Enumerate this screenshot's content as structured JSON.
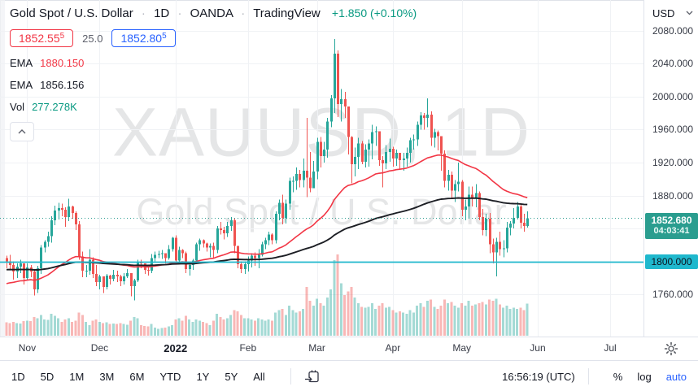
{
  "header": {
    "title": "Gold Spot / U.S. Dollar",
    "separator": "·",
    "interval": "1D",
    "exchange": "OANDA",
    "platform": "TradingView",
    "change": "+1.850 (+0.10%)",
    "change_color": "#089981"
  },
  "quote": {
    "bid": "1852.55",
    "bid_sup": "5",
    "spread": "25.0",
    "ask": "1852.80",
    "ask_sup": "5"
  },
  "indicators": [
    {
      "label": "EMA",
      "value": "1880.150",
      "color": "#f23645"
    },
    {
      "label": "EMA",
      "value": "1856.156",
      "color": "#131722"
    },
    {
      "label": "Vol",
      "value": "277.278K",
      "color": "#089981"
    }
  ],
  "watermark": {
    "line1": "XAUUSD, 1D",
    "line2": "Gold Spot / U.S. Dollar"
  },
  "price_axis": {
    "currency": "USD",
    "ticks": [
      "2080.000",
      "2040.000",
      "2000.000",
      "1960.000",
      "1920.000",
      "1880.000",
      "1760.000"
    ],
    "last_price_label": "1852.680",
    "countdown": "04:03:41",
    "level_label": "1800.000"
  },
  "time_axis": {
    "months": [
      {
        "label": "Nov",
        "index": 6
      },
      {
        "label": "Dec",
        "index": 27
      },
      {
        "label": "2022",
        "index": 49,
        "year": true
      },
      {
        "label": "Feb",
        "index": 70
      },
      {
        "label": "Mar",
        "index": 90
      },
      {
        "label": "Apr",
        "index": 112
      },
      {
        "label": "May",
        "index": 132
      },
      {
        "label": "Jun",
        "index": 154
      },
      {
        "label": "Jul",
        "index": 175
      }
    ]
  },
  "toolbar": {
    "ranges": [
      "1D",
      "5D",
      "1M",
      "3M",
      "6M",
      "YTD",
      "1Y",
      "5Y",
      "All"
    ],
    "time": "16:56:19 (UTC)",
    "percent": "%",
    "log": "log",
    "auto": "auto"
  },
  "chart_data": {
    "type": "candlestick",
    "symbol": "XAUUSD",
    "interval": "1D",
    "title": "Gold Spot / U.S. Dollar, 1D, OANDA",
    "ylim": [
      1710,
      2117
    ],
    "price_ticks_step": 40,
    "grid": true,
    "last_price": 1852.68,
    "level_line": 1800,
    "max_volume_k": 700,
    "first_open": 1804,
    "up_color": "#26a69a",
    "down_color": "#ef5350",
    "level_color": "#1fb8cd",
    "emas": [
      {
        "period": 45,
        "seed": 1772,
        "color": "#f23645",
        "last_value": 1880.15
      },
      {
        "period": 130,
        "seed": 1790,
        "color": "#1c1e24",
        "last_value": 1856.156
      }
    ],
    "candles_format": [
      "high",
      "low",
      "close",
      "volume_k"
    ],
    "candles": [
      [
        1807,
        1792,
        1800,
        115
      ],
      [
        1808,
        1790,
        1796,
        110
      ],
      [
        1800,
        1778,
        1788,
        120
      ],
      [
        1798,
        1780,
        1794,
        110
      ],
      [
        1802,
        1786,
        1798,
        105
      ],
      [
        1795,
        1772,
        1780,
        125
      ],
      [
        1798,
        1778,
        1793,
        130
      ],
      [
        1796,
        1781,
        1788,
        125
      ],
      [
        1790,
        1759,
        1766,
        160
      ],
      [
        1795,
        1762,
        1792,
        150
      ],
      [
        1820,
        1785,
        1817,
        180
      ],
      [
        1826,
        1811,
        1824,
        140
      ],
      [
        1836,
        1818,
        1831,
        135
      ],
      [
        1855,
        1823,
        1850,
        190
      ],
      [
        1868,
        1844,
        1862,
        170
      ],
      [
        1871,
        1851,
        1865,
        150
      ],
      [
        1870,
        1855,
        1863,
        120
      ],
      [
        1866,
        1842,
        1854,
        140
      ],
      [
        1876,
        1849,
        1867,
        150
      ],
      [
        1868,
        1852,
        1859,
        120
      ],
      [
        1861,
        1838,
        1845,
        130
      ],
      [
        1849,
        1802,
        1806,
        200
      ],
      [
        1812,
        1781,
        1789,
        180
      ],
      [
        1796,
        1781,
        1789,
        120
      ],
      [
        1815,
        1784,
        1802,
        90
      ],
      [
        1805,
        1780,
        1785,
        130
      ],
      [
        1796,
        1770,
        1775,
        140
      ],
      [
        1784,
        1766,
        1782,
        120
      ],
      [
        1774,
        1762,
        1769,
        110
      ],
      [
        1785,
        1766,
        1783,
        115
      ],
      [
        1784,
        1772,
        1779,
        100
      ],
      [
        1790,
        1776,
        1784,
        105
      ],
      [
        1789,
        1775,
        1782,
        100
      ],
      [
        1784,
        1770,
        1776,
        110
      ],
      [
        1786,
        1772,
        1782,
        100
      ],
      [
        1791,
        1780,
        1786,
        95
      ],
      [
        1780,
        1758,
        1770,
        130
      ],
      [
        1779,
        1753,
        1777,
        160
      ],
      [
        1802,
        1775,
        1799,
        150
      ],
      [
        1802,
        1792,
        1798,
        90
      ],
      [
        1797,
        1785,
        1790,
        85
      ],
      [
        1794,
        1783,
        1789,
        80
      ],
      [
        1809,
        1786,
        1804,
        100
      ],
      [
        1812,
        1800,
        1808,
        70
      ],
      [
        1813,
        1804,
        1809,
        60
      ],
      [
        1814,
        1803,
        1810,
        65
      ],
      [
        1809,
        1798,
        1804,
        70
      ],
      [
        1820,
        1802,
        1815,
        80
      ],
      [
        1830,
        1812,
        1829,
        90
      ],
      [
        1832,
        1798,
        1801,
        140
      ],
      [
        1818,
        1798,
        1814,
        150
      ],
      [
        1815,
        1804,
        1810,
        130
      ],
      [
        1812,
        1786,
        1791,
        170
      ],
      [
        1799,
        1783,
        1796,
        140
      ],
      [
        1803,
        1790,
        1801,
        120
      ],
      [
        1823,
        1799,
        1821,
        140
      ],
      [
        1828,
        1813,
        1826,
        130
      ],
      [
        1827,
        1817,
        1822,
        120
      ],
      [
        1823,
        1812,
        1817,
        110
      ],
      [
        1822,
        1805,
        1819,
        90
      ],
      [
        1823,
        1804,
        1814,
        130
      ],
      [
        1843,
        1810,
        1840,
        190
      ],
      [
        1848,
        1833,
        1838,
        160
      ],
      [
        1842,
        1827,
        1834,
        140
      ],
      [
        1848,
        1830,
        1843,
        150
      ],
      [
        1854,
        1837,
        1850,
        180
      ],
      [
        1853,
        1810,
        1819,
        220
      ],
      [
        1819,
        1792,
        1797,
        210
      ],
      [
        1800,
        1786,
        1791,
        180
      ],
      [
        1800,
        1785,
        1797,
        150
      ],
      [
        1806,
        1788,
        1801,
        150
      ],
      [
        1810,
        1793,
        1807,
        140
      ],
      [
        1811,
        1795,
        1804,
        130
      ],
      [
        1815,
        1792,
        1808,
        150
      ],
      [
        1824,
        1806,
        1821,
        140
      ],
      [
        1829,
        1815,
        1826,
        130
      ],
      [
        1836,
        1820,
        1833,
        140
      ],
      [
        1834,
        1821,
        1826,
        130
      ],
      [
        1861,
        1822,
        1858,
        200
      ],
      [
        1875,
        1850,
        1871,
        220
      ],
      [
        1881,
        1845,
        1853,
        230
      ],
      [
        1875,
        1846,
        1870,
        180
      ],
      [
        1902,
        1863,
        1898,
        260
      ],
      [
        1903,
        1884,
        1898,
        220
      ],
      [
        1914,
        1887,
        1906,
        200
      ],
      [
        1911,
        1890,
        1899,
        210
      ],
      [
        1925,
        1890,
        1910,
        230
      ],
      [
        1974,
        1878,
        1902,
        420
      ],
      [
        1933,
        1884,
        1889,
        300
      ],
      [
        1922,
        1889,
        1909,
        260
      ],
      [
        1950,
        1900,
        1945,
        320
      ],
      [
        1951,
        1914,
        1928,
        280
      ],
      [
        1945,
        1920,
        1936,
        260
      ],
      [
        1974,
        1926,
        1970,
        330
      ],
      [
        2002,
        1963,
        1998,
        400
      ],
      [
        2070,
        1980,
        2052,
        650
      ],
      [
        2056,
        1975,
        1991,
        700
      ],
      [
        2009,
        1970,
        1997,
        450
      ],
      [
        2006,
        1974,
        1988,
        350
      ],
      [
        1972,
        1930,
        1951,
        380
      ],
      [
        1952,
        1895,
        1918,
        420
      ],
      [
        1938,
        1903,
        1927,
        330
      ],
      [
        1950,
        1912,
        1943,
        280
      ],
      [
        1946,
        1918,
        1921,
        250
      ],
      [
        1942,
        1914,
        1936,
        240
      ],
      [
        1948,
        1915,
        1943,
        250
      ],
      [
        1966,
        1924,
        1957,
        280
      ],
      [
        1964,
        1940,
        1958,
        230
      ],
      [
        1944,
        1916,
        1923,
        260
      ],
      [
        1928,
        1890,
        1919,
        280
      ],
      [
        1941,
        1912,
        1933,
        240
      ],
      [
        1949,
        1921,
        1937,
        250
      ],
      [
        1939,
        1915,
        1925,
        220
      ],
      [
        1936,
        1916,
        1932,
        200
      ],
      [
        1932,
        1911,
        1923,
        210
      ],
      [
        1932,
        1910,
        1925,
        200
      ],
      [
        1938,
        1915,
        1932,
        190
      ],
      [
        1950,
        1920,
        1947,
        220
      ],
      [
        1954,
        1936,
        1948,
        200
      ],
      [
        1970,
        1940,
        1966,
        260
      ],
      [
        1981,
        1960,
        1977,
        280
      ],
      [
        1980,
        1960,
        1974,
        250
      ],
      [
        1998,
        1963,
        1978,
        300
      ],
      [
        1982,
        1940,
        1950,
        310
      ],
      [
        1961,
        1938,
        1957,
        250
      ],
      [
        1959,
        1935,
        1952,
        230
      ],
      [
        1940,
        1910,
        1931,
        260
      ],
      [
        1935,
        1890,
        1898,
        310
      ],
      [
        1911,
        1886,
        1905,
        280
      ],
      [
        1909,
        1876,
        1886,
        290
      ],
      [
        1899,
        1872,
        1894,
        260
      ],
      [
        1920,
        1885,
        1897,
        240
      ],
      [
        1899,
        1855,
        1863,
        280
      ],
      [
        1875,
        1850,
        1867,
        260
      ],
      [
        1891,
        1852,
        1881,
        300
      ],
      [
        1891,
        1867,
        1877,
        260
      ],
      [
        1894,
        1866,
        1883,
        270
      ],
      [
        1885,
        1850,
        1854,
        280
      ],
      [
        1864,
        1832,
        1838,
        290
      ],
      [
        1858,
        1831,
        1852,
        270
      ],
      [
        1859,
        1810,
        1821,
        310
      ],
      [
        1828,
        1798,
        1811,
        300
      ],
      [
        1829,
        1782,
        1824,
        320
      ],
      [
        1836,
        1807,
        1815,
        270
      ],
      [
        1826,
        1805,
        1816,
        240
      ],
      [
        1848,
        1811,
        1841,
        260
      ],
      [
        1849,
        1832,
        1846,
        230
      ],
      [
        1865,
        1840,
        1853,
        240
      ],
      [
        1872,
        1851,
        1867,
        230
      ],
      [
        1870,
        1840,
        1847,
        240
      ],
      [
        1858,
        1836,
        1843,
        220
      ],
      [
        1861,
        1841,
        1852.68,
        277
      ]
    ]
  }
}
